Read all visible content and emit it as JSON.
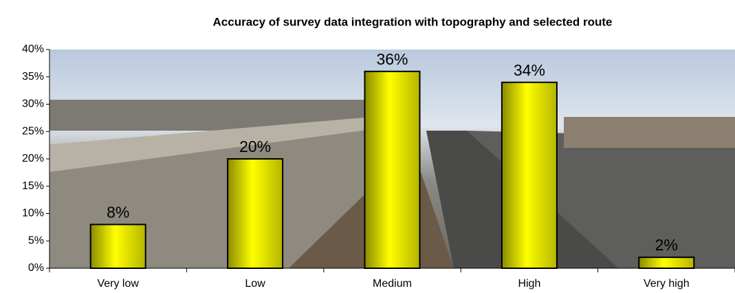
{
  "chart_data": {
    "type": "bar",
    "title": "Accuracy of survey data integration with topography and selected route",
    "categories": [
      "Very low",
      "Low",
      "Medium",
      "High",
      "Very high"
    ],
    "values": [
      8,
      20,
      36,
      34,
      2
    ],
    "value_labels": [
      "8%",
      "20%",
      "36%",
      "34%",
      "2%"
    ],
    "color": "#ffff00",
    "ylim": [
      0,
      40
    ],
    "yticks": [
      {
        "value": 0,
        "label": "0%"
      },
      {
        "value": 5,
        "label": "5%"
      },
      {
        "value": 10,
        "label": "10%"
      },
      {
        "value": 15,
        "label": "15%"
      },
      {
        "value": 20,
        "label": "20%"
      },
      {
        "value": 25,
        "label": "25%"
      },
      {
        "value": 30,
        "label": "30%"
      },
      {
        "value": 35,
        "label": "35%"
      },
      {
        "value": 40,
        "label": "40%"
      }
    ]
  }
}
